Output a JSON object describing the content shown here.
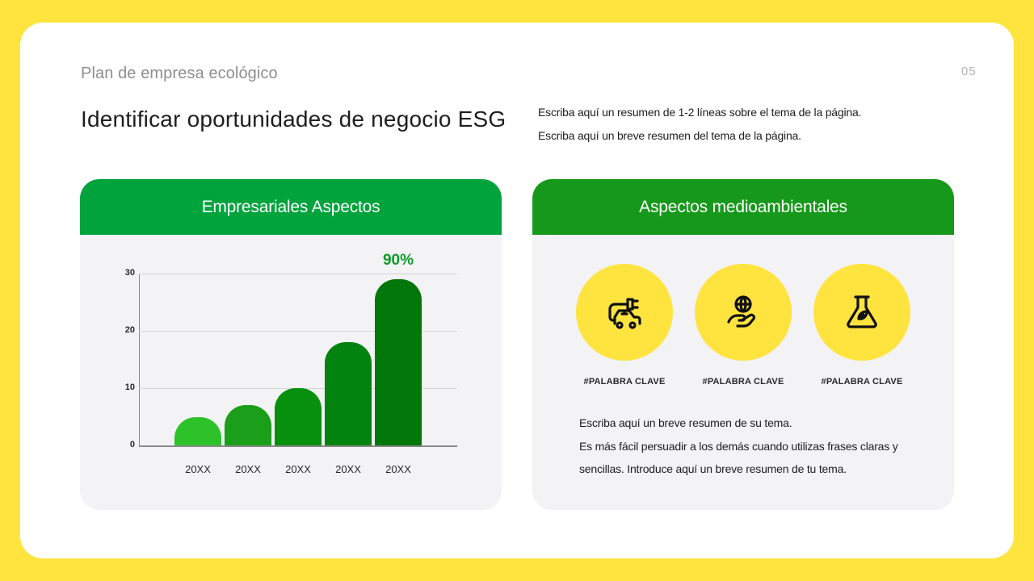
{
  "header": {
    "subtitle": "Plan de empresa ecológico",
    "page_number": "05",
    "title": "Identificar oportunidades de negocio ESG",
    "summary_lines": [
      "Escriba aquí un resumen de 1-2 líneas sobre el tema de la página.",
      "Escriba aquí un breve resumen del tema de la página."
    ]
  },
  "colors": {
    "background": "#FFE440",
    "left_header": "#00A33C",
    "right_header": "#16991A",
    "panel_body": "#F3F2F4",
    "bar_colors": [
      "#2DC22A",
      "#1B9E1A",
      "#078F0E",
      "#02820F",
      "#017609"
    ],
    "annotation": "#0E9A2A"
  },
  "left_panel": {
    "title": "Empresariales Aspectos"
  },
  "right_panel": {
    "title": "Aspectos medioambientales",
    "icons": [
      {
        "icon": "electric-car-plug-icon",
        "keyword": "#PALABRA CLAVE"
      },
      {
        "icon": "globe-in-hand-icon",
        "keyword": "#PALABRA CLAVE"
      },
      {
        "icon": "flask-leaf-icon",
        "keyword": "#PALABRA CLAVE"
      }
    ],
    "body_lines": [
      "Escriba aquí un breve resumen de su tema.",
      "Es más fácil persuadir a los demás cuando utilizas frases claras y",
      "sencillas. Introduce aquí un breve resumen de tu tema."
    ]
  },
  "chart_data": {
    "type": "bar",
    "title": "Empresariales Aspectos",
    "categories": [
      "20XX",
      "20XX",
      "20XX",
      "20XX",
      "20XX"
    ],
    "values": [
      5,
      7,
      10,
      18,
      29
    ],
    "xlabel": "",
    "ylabel": "",
    "ylim": [
      0,
      30
    ],
    "yticks": [
      "0",
      "10",
      "20",
      "30"
    ],
    "grid": true,
    "legend": null,
    "annotations": [
      {
        "category_index": 4,
        "text": "90%"
      }
    ]
  }
}
